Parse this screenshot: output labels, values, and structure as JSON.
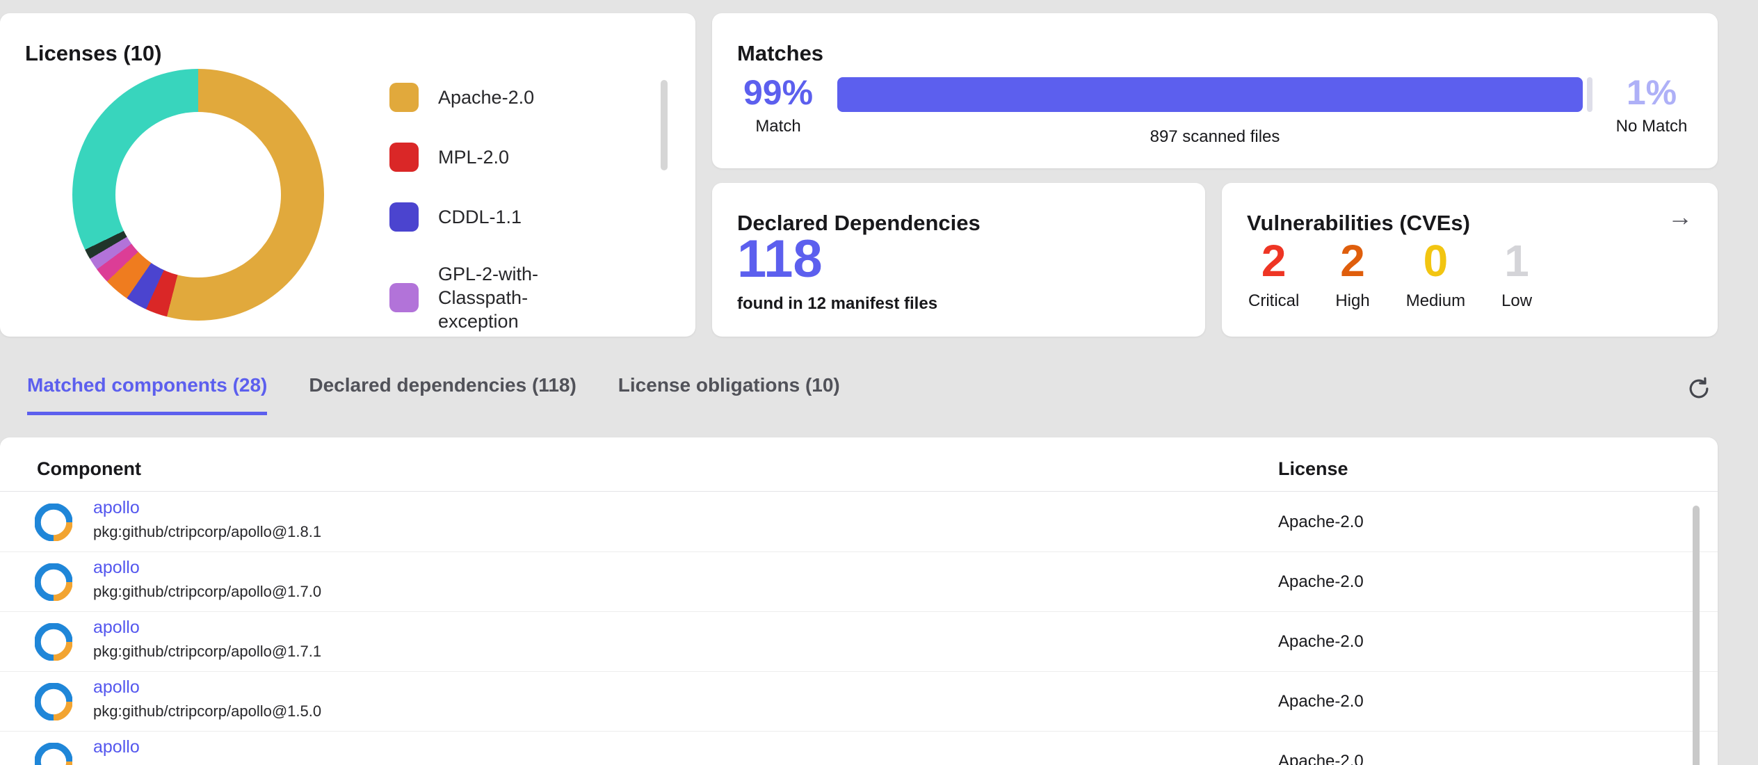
{
  "colors": {
    "accent": "#5c5fee",
    "accent_light": "#aeb0f7",
    "background": "#e4e4e4"
  },
  "licenses": {
    "title": "Licenses (10)",
    "legend": [
      {
        "label": "Apache-2.0",
        "color": "#e1a93c"
      },
      {
        "label": "MPL-2.0",
        "color": "#da2727"
      },
      {
        "label": "CDDL-1.1",
        "color": "#4b44cf"
      },
      {
        "label": "GPL-2-with-Classpath-exception",
        "color": "#b273d9"
      }
    ]
  },
  "matches": {
    "title": "Matches",
    "match_pct": "99%",
    "match_label": "Match",
    "nomatch_pct": "1%",
    "nomatch_label": "No Match",
    "scanned_caption": "897 scanned files"
  },
  "dependencies": {
    "title": "Declared Dependencies",
    "count": "118",
    "note": "found in 12 manifest files"
  },
  "vulnerabilities": {
    "title": "Vulnerabilities (CVEs)",
    "arrow_glyph": "→",
    "items": [
      {
        "value": "2",
        "label": "Critical",
        "color": "#ee3524"
      },
      {
        "value": "2",
        "label": "High",
        "color": "#df5e0c"
      },
      {
        "value": "0",
        "label": "Medium",
        "color": "#f2c511"
      },
      {
        "value": "1",
        "label": "Low",
        "color": "#d4d4d8"
      }
    ]
  },
  "tabs": {
    "items": [
      {
        "label": "Matched components (28)",
        "active": true
      },
      {
        "label": "Declared dependencies (118)",
        "active": false
      },
      {
        "label": "License obligations (10)",
        "active": false
      }
    ]
  },
  "table": {
    "headers": [
      "Component",
      "License"
    ],
    "rows": [
      {
        "name": "apollo",
        "purl": "pkg:github/ctripcorp/apollo@1.8.1",
        "license": "Apache-2.0"
      },
      {
        "name": "apollo",
        "purl": "pkg:github/ctripcorp/apollo@1.7.0",
        "license": "Apache-2.0"
      },
      {
        "name": "apollo",
        "purl": "pkg:github/ctripcorp/apollo@1.7.1",
        "license": "Apache-2.0"
      },
      {
        "name": "apollo",
        "purl": "pkg:github/ctripcorp/apollo@1.5.0",
        "license": "Apache-2.0"
      },
      {
        "name": "apollo",
        "purl": "",
        "license": "Apache-2.0"
      }
    ]
  },
  "chart_data": [
    {
      "type": "pie",
      "donut": true,
      "title": "Licenses (10)",
      "slices": [
        {
          "label": "Apache-2.0",
          "value": 54.0,
          "color": "#e1a93c"
        },
        {
          "label": "MPL-2.0",
          "value": 2.8,
          "color": "#da2727"
        },
        {
          "label": "CDDL-1.1",
          "value": 2.8,
          "color": "#4b44cf"
        },
        {
          "label": "",
          "value": 3.3,
          "color": "#ef7c1f"
        },
        {
          "label": "",
          "value": 2.0,
          "color": "#dc3d96"
        },
        {
          "label": "GPL-2-with-Classpath-exception",
          "value": 1.6,
          "color": "#b273d9"
        },
        {
          "label": "",
          "value": 1.3,
          "color": "#20342a"
        },
        {
          "label": "",
          "value": 32.2,
          "color": "#38d5bd"
        }
      ]
    },
    {
      "type": "bar",
      "title": "Matches",
      "categories": [
        "Match",
        "No Match"
      ],
      "values": [
        99,
        1
      ],
      "annotation": "897 scanned files"
    }
  ]
}
